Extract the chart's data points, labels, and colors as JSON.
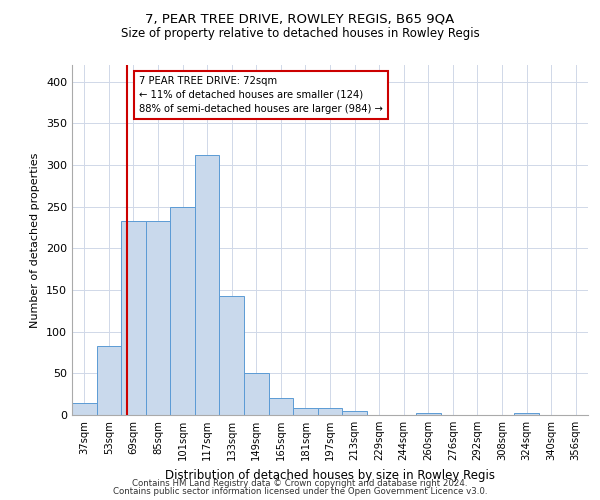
{
  "title": "7, PEAR TREE DRIVE, ROWLEY REGIS, B65 9QA",
  "subtitle": "Size of property relative to detached houses in Rowley Regis",
  "xlabel": "Distribution of detached houses by size in Rowley Regis",
  "ylabel": "Number of detached properties",
  "footnote1": "Contains HM Land Registry data © Crown copyright and database right 2024.",
  "footnote2": "Contains public sector information licensed under the Open Government Licence v3.0.",
  "bar_color": "#c9d9ec",
  "bar_edgecolor": "#5b9bd5",
  "bins": [
    "37sqm",
    "53sqm",
    "69sqm",
    "85sqm",
    "101sqm",
    "117sqm",
    "133sqm",
    "149sqm",
    "165sqm",
    "181sqm",
    "197sqm",
    "213sqm",
    "229sqm",
    "244sqm",
    "260sqm",
    "276sqm",
    "292sqm",
    "308sqm",
    "324sqm",
    "340sqm",
    "356sqm"
  ],
  "values": [
    15,
    83,
    233,
    233,
    250,
    312,
    143,
    50,
    20,
    9,
    9,
    5,
    0,
    0,
    3,
    0,
    0,
    0,
    3,
    0,
    0
  ],
  "property_label": "7 PEAR TREE DRIVE: 72sqm",
  "annotation_line1": "← 11% of detached houses are smaller (124)",
  "annotation_line2": "88% of semi-detached houses are larger (984) →",
  "vline_color": "#cc0000",
  "vline_x": 1.72,
  "ylim": [
    0,
    420
  ],
  "yticks": [
    0,
    50,
    100,
    150,
    200,
    250,
    300,
    350,
    400
  ],
  "background_color": "#ffffff",
  "grid_color": "#d0d8e8"
}
